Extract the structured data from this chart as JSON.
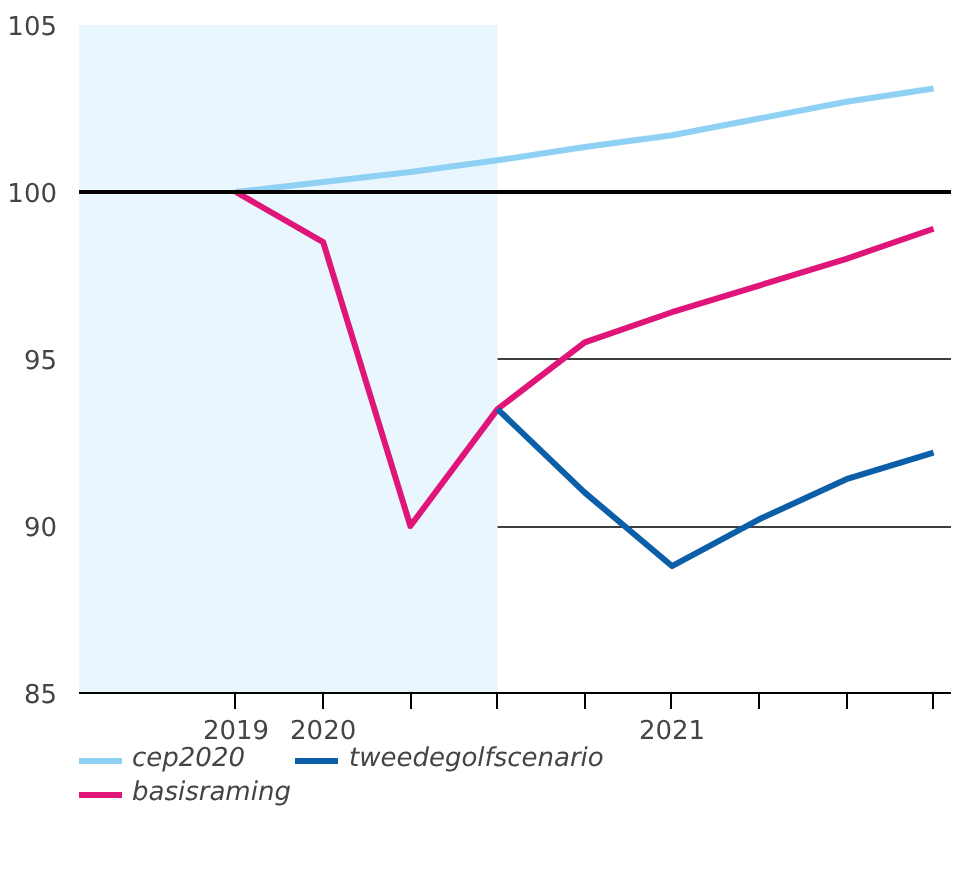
{
  "chart_data": {
    "type": "line",
    "categories": [
      "2019",
      "2020",
      null,
      null,
      null,
      "2021",
      null,
      null,
      null
    ],
    "ylim": [
      85,
      105
    ],
    "yticks": [
      85,
      90,
      95,
      100,
      105
    ],
    "grid": "y",
    "legend": "bottom",
    "series": [
      {
        "name": "cep2020",
        "color": "#8fd0f5",
        "values": [
          100,
          100.3,
          100.6,
          100.95,
          101.35,
          101.7,
          102.2,
          102.7,
          103.1
        ]
      },
      {
        "name": "basisraming",
        "color": "#e0157a",
        "values": [
          100,
          98.5,
          90,
          93.5,
          95.5,
          96.4,
          97.2,
          98.0,
          98.9
        ]
      },
      {
        "name": "tweedegolfscenario",
        "color": "#0a5fa8",
        "values": [
          null,
          null,
          null,
          93.5,
          91.0,
          88.8,
          90.2,
          91.4,
          92.2
        ]
      }
    ],
    "ref_lines": [
      {
        "axis": "y",
        "value": 100,
        "color": "#000000"
      }
    ]
  }
}
